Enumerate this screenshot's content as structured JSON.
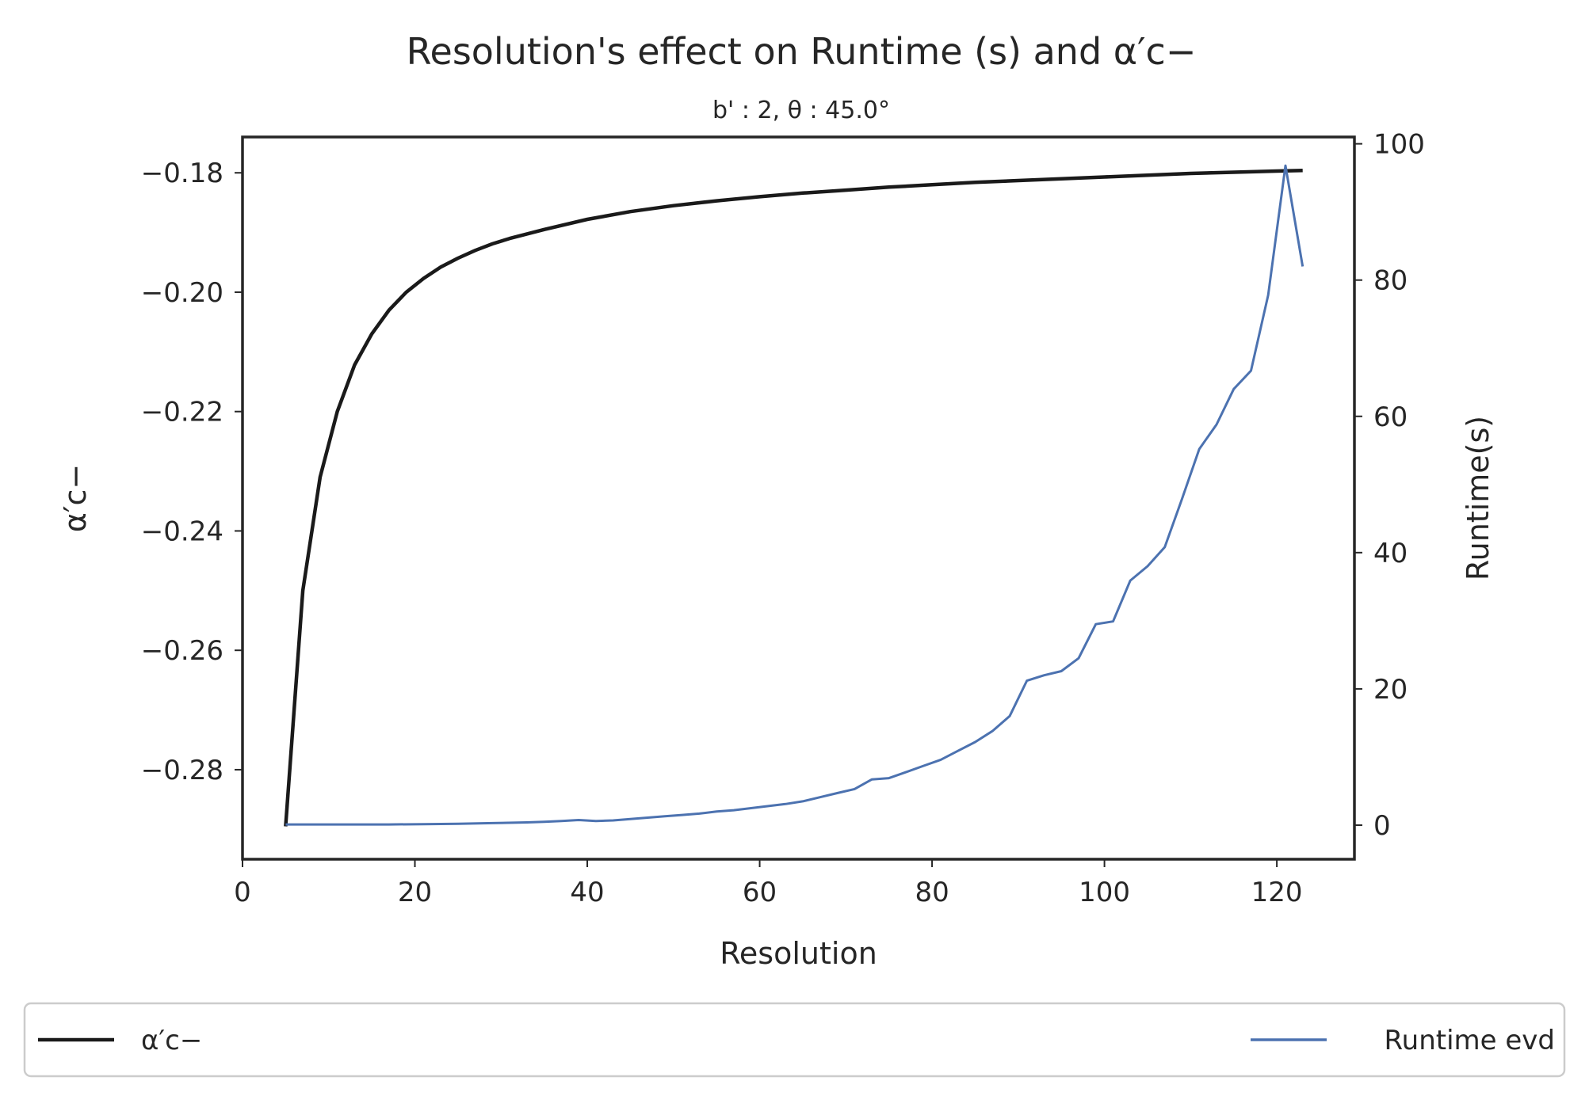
{
  "chart_data": {
    "type": "line",
    "title": "Resolution's effect on Runtime (s) and α′c−",
    "subtitle": "b' : 2,   θ : 45.0°",
    "xlabel": "Resolution",
    "ylabel": "α′c−",
    "ylabel_right": "Runtime(s)",
    "xlim": [
      0,
      129
    ],
    "ylim": [
      -0.295,
      -0.174
    ],
    "ylim_right": [
      -5,
      101
    ],
    "x_ticks": [
      0,
      20,
      40,
      60,
      80,
      100,
      120
    ],
    "x_tick_labels": [
      "0",
      "20",
      "40",
      "60",
      "80",
      "100",
      "120"
    ],
    "y_ticks": [
      -0.28,
      -0.26,
      -0.24,
      -0.22,
      -0.2,
      -0.18
    ],
    "y_tick_labels": [
      "−0.28",
      "−0.26",
      "−0.24",
      "−0.22",
      "−0.20",
      "−0.18"
    ],
    "y_right_ticks": [
      0,
      20,
      40,
      60,
      80,
      100
    ],
    "y_right_tick_labels": [
      "0",
      "20",
      "40",
      "60",
      "80",
      "100"
    ],
    "grid": false,
    "legend_placement": "bottom, below axes, spanning full width",
    "series": [
      {
        "name": "α′c−",
        "axis": "left",
        "color": "#1a1a1a",
        "x": [
          5,
          7,
          9,
          11,
          13,
          15,
          17,
          19,
          21,
          23,
          25,
          27,
          29,
          31,
          35,
          40,
          45,
          50,
          55,
          60,
          65,
          70,
          75,
          80,
          85,
          90,
          95,
          100,
          105,
          110,
          115,
          120,
          123
        ],
        "y": [
          -0.2895,
          -0.25,
          -0.231,
          -0.22,
          -0.2122,
          -0.207,
          -0.203,
          -0.2,
          -0.1977,
          -0.1958,
          -0.1943,
          -0.193,
          -0.1919,
          -0.191,
          -0.1895,
          -0.1878,
          -0.1865,
          -0.1855,
          -0.1847,
          -0.184,
          -0.1834,
          -0.1829,
          -0.1824,
          -0.182,
          -0.1816,
          -0.1813,
          -0.181,
          -0.1807,
          -0.1804,
          -0.1801,
          -0.1799,
          -0.1797,
          -0.1796
        ]
      },
      {
        "name": "Runtime evd",
        "axis": "right",
        "color": "#4c72b0",
        "x": [
          5,
          9,
          13,
          17,
          21,
          25,
          29,
          33,
          35,
          37,
          39,
          41,
          43,
          45,
          47,
          49,
          51,
          53,
          55,
          57,
          59,
          61,
          63,
          65,
          67,
          69,
          71,
          73,
          75,
          77,
          79,
          81,
          83,
          85,
          87,
          89,
          91,
          93,
          95,
          97,
          99,
          101,
          103,
          105,
          107,
          109,
          111,
          113,
          115,
          117,
          119,
          121,
          123
        ],
        "y": [
          0.1,
          0.1,
          0.1,
          0.1,
          0.15,
          0.2,
          0.3,
          0.4,
          0.5,
          0.6,
          0.75,
          0.6,
          0.7,
          0.9,
          1.1,
          1.3,
          1.5,
          1.7,
          2.0,
          2.2,
          2.5,
          2.8,
          3.1,
          3.5,
          4.1,
          4.7,
          5.3,
          6.7,
          6.9,
          7.8,
          8.7,
          9.6,
          10.9,
          12.2,
          13.8,
          16.0,
          21.2,
          22.0,
          22.6,
          24.5,
          29.5,
          29.9,
          35.9,
          38.0,
          40.8,
          47.9,
          55.2,
          58.8,
          64.0,
          66.7,
          77.8,
          96.8,
          82.0
        ]
      }
    ]
  }
}
